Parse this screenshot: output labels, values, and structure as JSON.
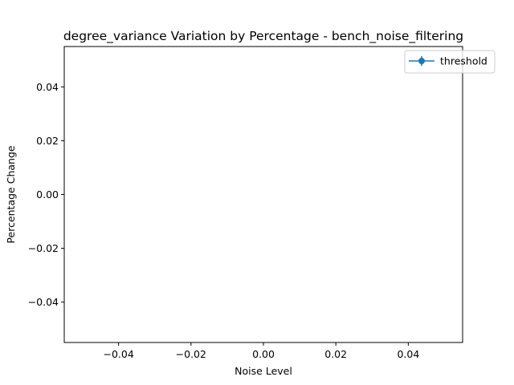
{
  "chart_data": {
    "type": "line",
    "title": "degree_variance Variation by Percentage - bench_noise_filtering",
    "xlabel": "Noise Level",
    "ylabel": "Percentage Change",
    "xlim": [
      -0.055,
      0.055
    ],
    "ylim": [
      -0.055,
      0.055
    ],
    "x_ticks": [
      -0.04,
      -0.02,
      0.0,
      0.02,
      0.04
    ],
    "x_tick_labels": [
      "−0.04",
      "−0.02",
      "0.00",
      "0.02",
      "0.04"
    ],
    "y_ticks": [
      -0.04,
      -0.02,
      0.0,
      0.02,
      0.04
    ],
    "y_tick_labels": [
      "−0.04",
      "−0.02",
      "0.00",
      "0.02",
      "0.04"
    ],
    "grid": false,
    "legend_position": "top-right",
    "series": [
      {
        "name": "threshold",
        "color": "#1f77b4",
        "marker": "circle",
        "error_bars": true,
        "x": [],
        "y": []
      }
    ]
  }
}
